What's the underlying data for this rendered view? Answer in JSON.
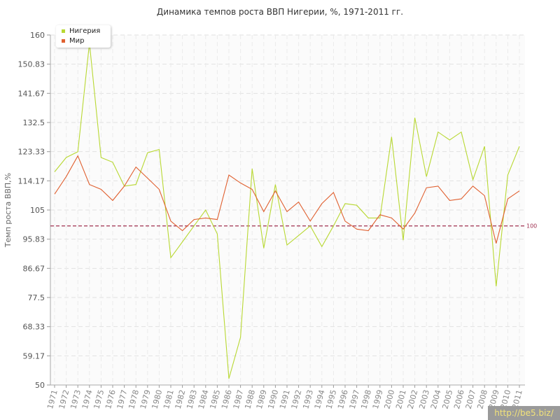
{
  "title": "Динамика темпов роста ВВП Нигерии, %, 1971-2011 гг.",
  "watermark": "http://be5.biz/",
  "legend": [
    {
      "name": "Нигерия",
      "color": "#b8d832"
    },
    {
      "name": "Мир",
      "color": "#e06030"
    }
  ],
  "chart_data": {
    "type": "line",
    "title": "Динамика темпов роста ВВП Нигерии, %, 1971-2011 гг.",
    "ylabel": "Темп роста ВВП,%",
    "xlabel": "",
    "ylim": [
      50,
      160
    ],
    "yticks": [
      "50",
      "59.17",
      "68.33",
      "77.5",
      "86.67",
      "95.83",
      "105",
      "114.17",
      "123.33",
      "132.5",
      "141.67",
      "150.83",
      "160"
    ],
    "x": [
      "1971",
      "1972",
      "1973",
      "1974",
      "1975",
      "1976",
      "1977",
      "1978",
      "1979",
      "1980",
      "1981",
      "1982",
      "1983",
      "1984",
      "1985",
      "1986",
      "1987",
      "1988",
      "1989",
      "1990",
      "1991",
      "1992",
      "1993",
      "1994",
      "1995",
      "1996",
      "1997",
      "1998",
      "1999",
      "2000",
      "2001",
      "2002",
      "2003",
      "2004",
      "2005",
      "2006",
      "2007",
      "2008",
      "2009",
      "2010",
      "2011"
    ],
    "reference_line": {
      "value": 100,
      "label": "100",
      "color": "#a03050"
    },
    "grid": true,
    "legend_position": "top-left",
    "series": [
      {
        "name": "Нигерия",
        "color": "#b8d832",
        "values": [
          117,
          121.5,
          123.3,
          157.5,
          121.5,
          120,
          112.5,
          113,
          123,
          124,
          90,
          95,
          100,
          105,
          97.5,
          52,
          65,
          118,
          93,
          113,
          94,
          97,
          100,
          93.5,
          100,
          107,
          106.5,
          102.5,
          102.5,
          128,
          95.5,
          134,
          115.5,
          129.5,
          127,
          129.5,
          114.5,
          125,
          81,
          116,
          125
        ]
      },
      {
        "name": "Мир",
        "color": "#e06030",
        "values": [
          110,
          115.5,
          122,
          113,
          111.5,
          108,
          112.5,
          118.5,
          115,
          111.5,
          101.5,
          98.5,
          102,
          102.5,
          102,
          116,
          113.5,
          111.5,
          104.5,
          111,
          104.5,
          107.5,
          101.5,
          107,
          110.5,
          101.5,
          99,
          98.5,
          103.5,
          102.5,
          99,
          104,
          112,
          112.5,
          108,
          108.5,
          112.5,
          109.5,
          94.5,
          108.5,
          111
        ]
      }
    ]
  }
}
